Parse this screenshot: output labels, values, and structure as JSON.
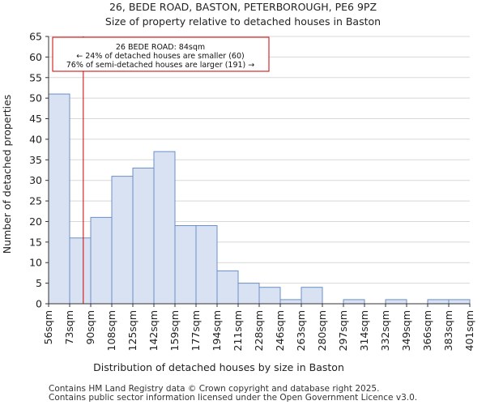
{
  "chart_data": {
    "type": "bar",
    "title_line1": "26, BEDE ROAD, BASTON, PETERBOROUGH, PE6 9PZ",
    "title_line2": "Size of property relative to detached houses in Baston",
    "xlabel": "Distribution of detached houses by size in Baston",
    "ylabel": "Number of detached properties",
    "x_ticks": [
      "56sqm",
      "73sqm",
      "90sqm",
      "108sqm",
      "125sqm",
      "142sqm",
      "159sqm",
      "177sqm",
      "194sqm",
      "211sqm",
      "228sqm",
      "246sqm",
      "263sqm",
      "280sqm",
      "297sqm",
      "314sqm",
      "332sqm",
      "349sqm",
      "366sqm",
      "383sqm",
      "401sqm"
    ],
    "values": [
      51,
      16,
      21,
      31,
      33,
      37,
      19,
      19,
      8,
      5,
      4,
      1,
      4,
      0,
      1,
      0,
      1,
      0,
      1,
      1
    ],
    "y_ticks": [
      0,
      5,
      10,
      15,
      20,
      25,
      30,
      35,
      40,
      45,
      50,
      55,
      60,
      65
    ],
    "ylim": [
      0,
      65
    ],
    "grid": true,
    "bar_color": "#d9e2f3",
    "bar_edge_color": "#6a8fc8",
    "marker": {
      "value_sqm": 84,
      "color": "#cc0000",
      "line1": "26 BEDE ROAD: 84sqm",
      "line2": "← 24% of detached houses are smaller (60)",
      "line3": "76% of semi-detached houses are larger (191) →"
    }
  },
  "footer": {
    "line1": "Contains HM Land Registry data © Crown copyright and database right 2025.",
    "line2": "Contains public sector information licensed under the Open Government Licence v3.0."
  }
}
